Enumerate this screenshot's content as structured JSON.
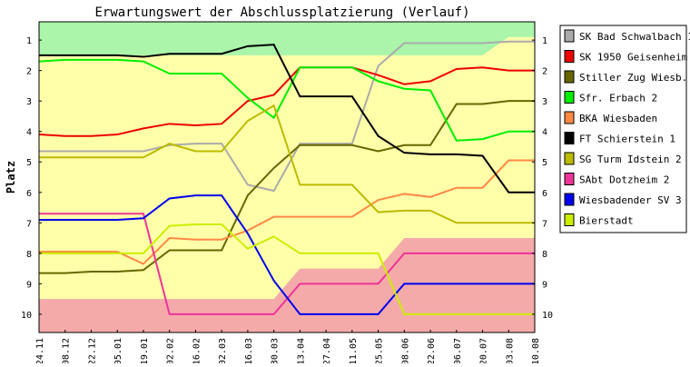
{
  "chart_data": {
    "type": "line",
    "title": "Erwartungswert der Abschlussplatzierung (Verlauf)",
    "xlabel": "",
    "ylabel": "Platz",
    "x": [
      "24.11",
      "08.12",
      "22.12",
      "05.01",
      "19.01",
      "02.02",
      "16.02",
      "02.03",
      "16.03",
      "30.03",
      "13.04",
      "27.04",
      "11.05",
      "25.05",
      "08.06",
      "22.06",
      "06.07",
      "20.07",
      "03.08",
      "10.08"
    ],
    "yticks": [
      1,
      2,
      3,
      4,
      5,
      6,
      7,
      8,
      9,
      10
    ],
    "ylim": [
      0.4,
      10.6
    ],
    "y_reversed": true,
    "grid": false,
    "legend_position": "right",
    "bands": {
      "top_color": "#aaf5aa",
      "middle_color": "#ffffaa",
      "bottom_color": "#f5aaaa",
      "top_upper_edge": [
        1,
        1,
        1,
        1,
        1,
        1,
        1,
        1,
        1,
        1,
        1,
        1,
        1,
        1,
        1,
        1,
        1,
        1,
        0.4,
        0.4
      ],
      "bottom_lower_edge": [
        9.5,
        9.5,
        9.5,
        9.5,
        9.5,
        9.5,
        9.5,
        9.5,
        9.5,
        9.5,
        8.5,
        8.5,
        8.5,
        8.5,
        7.5,
        7.5,
        7.5,
        7.5,
        7.5,
        7.5
      ]
    },
    "series": [
      {
        "name": "SK Bad Schwalbach 1",
        "color": "#aaaaaa",
        "values": [
          4.65,
          4.65,
          4.65,
          4.65,
          4.65,
          4.45,
          4.4,
          4.4,
          5.75,
          5.95,
          4.4,
          4.4,
          4.4,
          1.85,
          1.1,
          1.1,
          1.1,
          1.1,
          1.05,
          1.05
        ]
      },
      {
        "name": "SK 1950 Geisenheim",
        "color": "#ee0000",
        "values": [
          4.1,
          4.15,
          4.15,
          4.1,
          3.9,
          3.75,
          3.8,
          3.75,
          3.0,
          2.8,
          1.9,
          1.9,
          1.9,
          2.15,
          2.45,
          2.35,
          1.95,
          1.9,
          2.0,
          2.0
        ]
      },
      {
        "name": "Stiller Zug Wiesb.",
        "color": "#666600",
        "values": [
          8.65,
          8.65,
          8.6,
          8.6,
          8.55,
          7.9,
          7.9,
          7.9,
          6.1,
          5.2,
          4.45,
          4.45,
          4.45,
          4.65,
          4.45,
          4.45,
          3.1,
          3.1,
          3.0,
          3.0
        ]
      },
      {
        "name": "Sfr. Erbach 2",
        "color": "#00ee00",
        "values": [
          1.7,
          1.65,
          1.65,
          1.65,
          1.7,
          2.1,
          2.1,
          2.1,
          2.9,
          3.55,
          1.9,
          1.9,
          1.9,
          2.35,
          2.6,
          2.65,
          4.3,
          4.25,
          4.0,
          4.0
        ]
      },
      {
        "name": "BKA Wiesbaden",
        "color": "#ff8844",
        "values": [
          7.95,
          7.95,
          7.95,
          7.95,
          8.35,
          7.5,
          7.55,
          7.55,
          7.25,
          6.8,
          6.8,
          6.8,
          6.8,
          6.25,
          6.05,
          6.15,
          5.85,
          5.85,
          4.95,
          4.95
        ]
      },
      {
        "name": "FT Schierstein 1",
        "color": "#000000",
        "values": [
          1.5,
          1.5,
          1.5,
          1.5,
          1.55,
          1.45,
          1.45,
          1.45,
          1.2,
          1.15,
          2.85,
          2.85,
          2.85,
          4.15,
          4.7,
          4.75,
          4.75,
          4.8,
          6.0,
          6.0
        ]
      },
      {
        "name": "SG Turm Idstein 2",
        "color": "#bbbb00",
        "values": [
          4.85,
          4.85,
          4.85,
          4.85,
          4.85,
          4.4,
          4.65,
          4.65,
          3.65,
          3.15,
          5.75,
          5.75,
          5.75,
          6.65,
          6.6,
          6.6,
          7.0,
          7.0,
          7.0,
          7.0
        ]
      },
      {
        "name": "SAbt Dotzheim 2",
        "color": "#ee3399",
        "values": [
          6.7,
          6.7,
          6.7,
          6.7,
          6.7,
          10.0,
          10.0,
          10.0,
          10.0,
          10.0,
          9.0,
          9.0,
          9.0,
          9.0,
          8.0,
          8.0,
          8.0,
          8.0,
          8.0,
          8.0
        ]
      },
      {
        "name": "Wiesbadender SV 3",
        "color": "#0000ee",
        "values": [
          6.9,
          6.9,
          6.9,
          6.9,
          6.85,
          6.2,
          6.1,
          6.1,
          7.35,
          8.9,
          10.0,
          10.0,
          10.0,
          10.0,
          9.0,
          9.0,
          9.0,
          9.0,
          9.0,
          9.0
        ]
      },
      {
        "name": "Bierstadt",
        "color": "#ccee00",
        "values": [
          8.0,
          8.0,
          8.0,
          8.0,
          8.0,
          7.1,
          7.05,
          7.05,
          7.85,
          7.45,
          8.0,
          8.0,
          8.0,
          8.0,
          10.0,
          10.0,
          10.0,
          10.0,
          10.0,
          10.0
        ]
      }
    ]
  }
}
